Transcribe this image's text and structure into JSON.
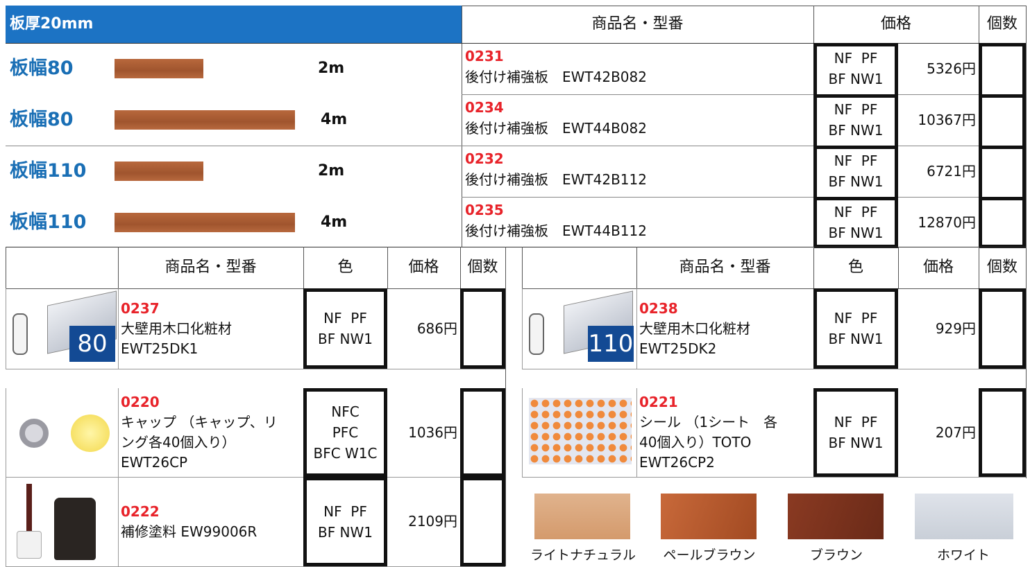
{
  "header": {
    "title": "板厚20mm",
    "name_header": "商品名・型番",
    "price_header": "価格",
    "qty_header": "個数"
  },
  "boards": [
    {
      "width": "板幅80",
      "length": "2m",
      "code": "0231",
      "name": "後付け補強板　EWT42B082",
      "colors": [
        "NF  PF",
        "BF NW1"
      ],
      "price": "5326円"
    },
    {
      "width": "板幅80",
      "length": "4m",
      "code": "0234",
      "name": "後付け補強板　EWT44B082",
      "colors": [
        "NF  PF",
        "BF NW1"
      ],
      "price": "10367円"
    },
    {
      "width": "板幅110",
      "length": "2m",
      "code": "0232",
      "name": "後付け補強板　EWT42B112",
      "colors": [
        "NF  PF",
        "BF NW1"
      ],
      "price": "6721円"
    },
    {
      "width": "板幅110",
      "length": "4m",
      "code": "0235",
      "name": "後付け補強板　EWT44B112",
      "colors": [
        "NF  PF",
        "BF NW1"
      ],
      "price": "12870円"
    }
  ],
  "accessories": {
    "left": {
      "header": {
        "name": "商品名・型番",
        "color": "色",
        "price": "価格",
        "qty": "個数"
      },
      "items": [
        {
          "code": "0237",
          "lines": [
            "大壁用木口化粧材",
            "EWT25DK1"
          ],
          "colors": [
            "NF  PF",
            "BF NW1"
          ],
          "price": "686円",
          "badge": "80"
        },
        {
          "code": "0220",
          "lines": [
            "キャップ （キャップ、リ",
            "ング各40個入り）",
            "EWT26CP"
          ],
          "colors": [
            "NFC",
            "PFC",
            "BFC W1C"
          ],
          "price": "1036円"
        },
        {
          "code": "0222",
          "lines": [
            "補修塗料 EW99006R"
          ],
          "colors": [
            "NF  PF",
            "BF NW1"
          ],
          "price": "2109円"
        }
      ]
    },
    "right": {
      "header": {
        "name": "商品名・型番",
        "color": "色",
        "price": "価格",
        "qty": "個数"
      },
      "items": [
        {
          "code": "0238",
          "lines": [
            "大壁用木口化粧材",
            "EWT25DK2"
          ],
          "colors": [
            "NF  PF",
            "BF NW1"
          ],
          "price": "929円",
          "badge": "110"
        },
        {
          "code": "0221",
          "lines": [
            "シール （1シート　各",
            "40個入り）TOTO",
            "EWT26CP2"
          ],
          "colors": [
            "NF  PF",
            "BF NW1"
          ],
          "price": "207円"
        }
      ]
    }
  },
  "swatches": [
    "ライトナチュラル",
    "ペールブラウン",
    "ブラウン",
    "ホワイト"
  ]
}
